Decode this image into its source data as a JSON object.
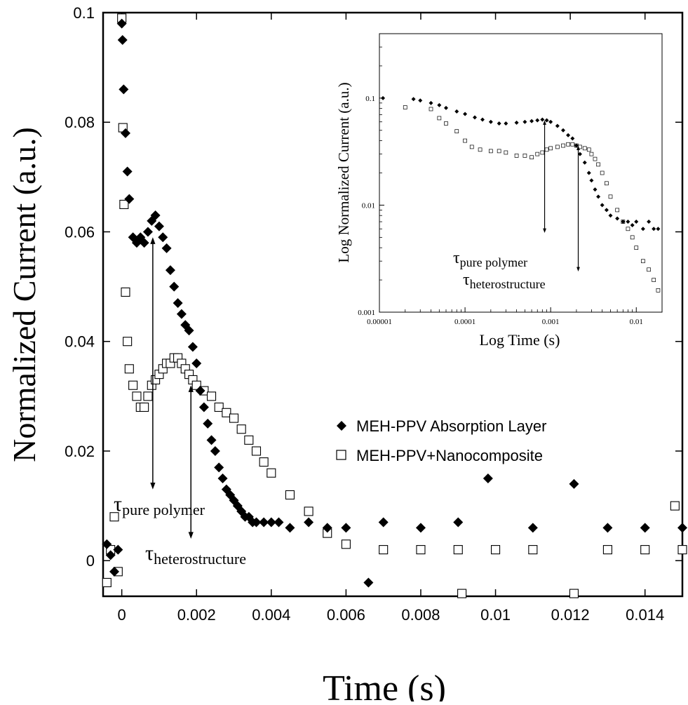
{
  "chart_data": [
    {
      "type": "scatter",
      "xlabel": "Time (s)",
      "ylabel": "Normalized Current (a.u.)",
      "xlim": [
        -0.0005,
        0.015
      ],
      "ylim": [
        -0.0065,
        0.1
      ],
      "xticks": [
        0,
        0.002,
        0.004,
        0.006,
        0.008,
        0.01,
        0.012,
        0.014
      ],
      "xtick_labels": [
        "0",
        "0.002",
        "0.004",
        "0.006",
        "0.008",
        "0.01",
        "0.012",
        "0.014"
      ],
      "yticks": [
        0,
        0.02,
        0.04,
        0.06,
        0.08,
        0.1
      ],
      "ytick_labels": [
        "0",
        "0.02",
        "0.04",
        "0.06",
        "0.08",
        "0.1"
      ],
      "legend_position": "center-right",
      "series": [
        {
          "name": "MEH-PPV Absorption Layer",
          "marker": "filled-diamond",
          "color": "#000000",
          "x": [
            -0.0004,
            -0.0003,
            -0.0002,
            -0.0001,
            0.0,
            2e-05,
            5e-05,
            0.0001,
            0.00015,
            0.0002,
            0.0003,
            0.0004,
            0.0005,
            0.0006,
            0.0007,
            0.0008,
            0.0009,
            0.001,
            0.0011,
            0.0012,
            0.0013,
            0.0014,
            0.0015,
            0.0016,
            0.0017,
            0.0018,
            0.0019,
            0.002,
            0.0021,
            0.0022,
            0.0023,
            0.0024,
            0.0025,
            0.0026,
            0.0027,
            0.0028,
            0.0029,
            0.003,
            0.0031,
            0.0032,
            0.0033,
            0.0034,
            0.0035,
            0.0036,
            0.0038,
            0.004,
            0.0042,
            0.0045,
            0.005,
            0.0055,
            0.006,
            0.0066,
            0.007,
            0.008,
            0.009,
            0.0098,
            0.011,
            0.0121,
            0.013,
            0.014,
            0.015
          ],
          "y": [
            0.003,
            0.001,
            -0.002,
            0.002,
            0.098,
            0.095,
            0.086,
            0.078,
            0.071,
            0.066,
            0.059,
            0.058,
            0.059,
            0.058,
            0.06,
            0.062,
            0.063,
            0.061,
            0.059,
            0.057,
            0.053,
            0.05,
            0.047,
            0.045,
            0.043,
            0.042,
            0.039,
            0.036,
            0.031,
            0.028,
            0.025,
            0.022,
            0.02,
            0.017,
            0.015,
            0.013,
            0.012,
            0.011,
            0.01,
            0.009,
            0.008,
            0.008,
            0.007,
            0.007,
            0.007,
            0.007,
            0.007,
            0.006,
            0.007,
            0.006,
            0.006,
            -0.004,
            0.007,
            0.006,
            0.007,
            0.015,
            0.006,
            0.014,
            0.006,
            0.006,
            0.006
          ]
        },
        {
          "name": "MEH-PPV+Nanocomposite",
          "marker": "open-square",
          "color": "#000000",
          "x": [
            -0.0004,
            -0.0003,
            -0.0002,
            -0.0001,
            0.0,
            3e-05,
            6e-05,
            0.0001,
            0.00015,
            0.0002,
            0.0003,
            0.0004,
            0.0005,
            0.0006,
            0.0007,
            0.0008,
            0.0009,
            0.001,
            0.0011,
            0.0012,
            0.0013,
            0.0014,
            0.0015,
            0.0016,
            0.0017,
            0.0018,
            0.0019,
            0.002,
            0.0022,
            0.0024,
            0.0026,
            0.0028,
            0.003,
            0.0032,
            0.0034,
            0.0036,
            0.0038,
            0.004,
            0.0045,
            0.005,
            0.0055,
            0.006,
            0.007,
            0.008,
            0.009,
            0.0091,
            0.01,
            0.011,
            0.0121,
            0.013,
            0.014,
            0.0148,
            0.015
          ],
          "y": [
            -0.004,
            0.002,
            0.008,
            -0.002,
            0.099,
            0.079,
            0.065,
            0.049,
            0.04,
            0.035,
            0.032,
            0.03,
            0.028,
            0.028,
            0.03,
            0.032,
            0.033,
            0.034,
            0.035,
            0.036,
            0.036,
            0.037,
            0.037,
            0.036,
            0.035,
            0.034,
            0.033,
            0.032,
            0.031,
            0.03,
            0.028,
            0.027,
            0.026,
            0.024,
            0.022,
            0.02,
            0.018,
            0.016,
            0.012,
            0.009,
            0.005,
            0.003,
            0.002,
            0.002,
            0.002,
            -0.006,
            0.002,
            0.002,
            -0.006,
            0.002,
            0.002,
            0.01,
            0.002
          ]
        }
      ],
      "annotations": [
        {
          "symbol": "τ",
          "subscript": "pure polymer",
          "x_from": 0.00083,
          "y_from": 0.059,
          "x_to": 0.00083,
          "y_to": 0.013
        },
        {
          "symbol": "τ",
          "subscript": "heterostructure",
          "x_from": 0.00185,
          "y_from": 0.032,
          "x_to": 0.00185,
          "y_to": 0.004
        }
      ]
    },
    {
      "type": "scatter",
      "scale": "log-log",
      "xlabel": "Log Time (s)",
      "ylabel": "Log Normalized Current (a.u.)",
      "xlim": [
        1e-05,
        0.02
      ],
      "ylim": [
        0.001,
        0.4
      ],
      "xticks": [
        1e-05,
        0.0001,
        0.001,
        0.01
      ],
      "xtick_labels": [
        "0.00001",
        "0.0001",
        "0.001",
        "0.01"
      ],
      "yticks": [
        0.001,
        0.01,
        0.1
      ],
      "ytick_labels": [
        "0.001",
        "0.01",
        "0.1"
      ],
      "series": [
        {
          "name": "MEH-PPV Absorption Layer",
          "marker": "filled-diamond",
          "x": [
            1.1e-05,
            2.5e-05,
            3e-05,
            4e-05,
            5e-05,
            6e-05,
            8e-05,
            0.0001,
            0.00013,
            0.00016,
            0.0002,
            0.00025,
            0.0003,
            0.0004,
            0.0005,
            0.0006,
            0.0007,
            0.0008,
            0.0009,
            0.001,
            0.0012,
            0.0014,
            0.0016,
            0.0018,
            0.002,
            0.0022,
            0.0025,
            0.0028,
            0.003,
            0.0033,
            0.0036,
            0.004,
            0.0045,
            0.005,
            0.006,
            0.007,
            0.008,
            0.009,
            0.01,
            0.012,
            0.014,
            0.016,
            0.018
          ],
          "y": [
            0.1,
            0.098,
            0.095,
            0.09,
            0.086,
            0.081,
            0.075,
            0.071,
            0.066,
            0.063,
            0.06,
            0.058,
            0.058,
            0.059,
            0.06,
            0.061,
            0.062,
            0.063,
            0.062,
            0.06,
            0.055,
            0.05,
            0.045,
            0.042,
            0.036,
            0.03,
            0.025,
            0.02,
            0.017,
            0.014,
            0.012,
            0.01,
            0.009,
            0.008,
            0.0075,
            0.007,
            0.007,
            0.0065,
            0.007,
            0.006,
            0.007,
            0.006,
            0.006
          ]
        },
        {
          "name": "MEH-PPV+Nanocomposite",
          "marker": "open-square",
          "x": [
            2e-05,
            4e-05,
            5e-05,
            6e-05,
            8e-05,
            0.0001,
            0.00012,
            0.00015,
            0.0002,
            0.00025,
            0.0003,
            0.0004,
            0.0005,
            0.0006,
            0.0007,
            0.0008,
            0.0009,
            0.001,
            0.0012,
            0.0014,
            0.0016,
            0.0018,
            0.002,
            0.0022,
            0.0025,
            0.0028,
            0.003,
            0.0033,
            0.0036,
            0.004,
            0.0045,
            0.005,
            0.006,
            0.007,
            0.008,
            0.009,
            0.01,
            0.012,
            0.014,
            0.016,
            0.018
          ],
          "y": [
            0.082,
            0.079,
            0.065,
            0.058,
            0.049,
            0.04,
            0.035,
            0.033,
            0.032,
            0.032,
            0.031,
            0.029,
            0.029,
            0.028,
            0.03,
            0.031,
            0.033,
            0.034,
            0.035,
            0.036,
            0.037,
            0.037,
            0.036,
            0.035,
            0.034,
            0.033,
            0.03,
            0.027,
            0.024,
            0.02,
            0.016,
            0.012,
            0.009,
            0.007,
            0.006,
            0.005,
            0.004,
            0.003,
            0.0025,
            0.002,
            0.0016
          ]
        }
      ],
      "annotations": [
        {
          "symbol": "τ",
          "subscript": "pure polymer",
          "x_from": 0.00085,
          "y_from": 0.062,
          "x_to": 0.00085,
          "y_to": 0.0055
        },
        {
          "symbol": "τ",
          "subscript": "heterostructure",
          "x_from": 0.0021,
          "y_from": 0.036,
          "x_to": 0.0021,
          "y_to": 0.0024
        }
      ]
    }
  ]
}
